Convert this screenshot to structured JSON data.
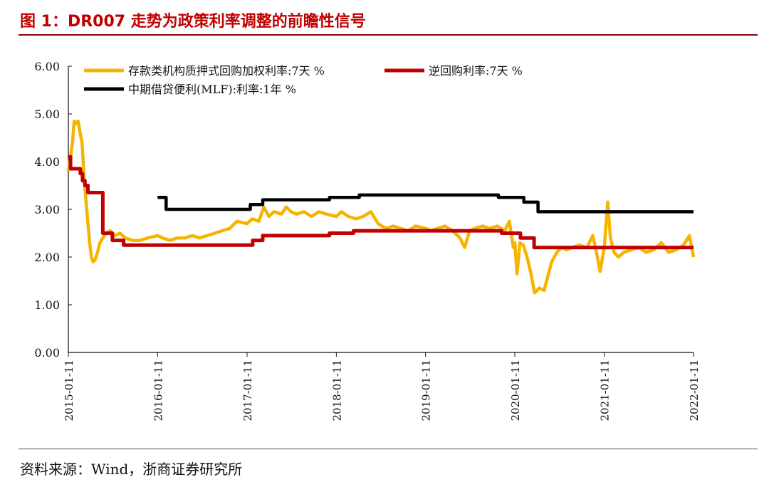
{
  "figure_title": "图 1：DR007 走势为政策利率调整的前瞻性信号",
  "source_note": "资料来源：Wind，浙商证券研究所",
  "chart_data": {
    "type": "line",
    "xlabel": "",
    "ylabel": "",
    "ylim": [
      0,
      6
    ],
    "x_range": [
      "2015-01-11",
      "2022-01-11"
    ],
    "y_ticks": [
      "0.00",
      "1.00",
      "2.00",
      "3.00",
      "4.00",
      "5.00",
      "6.00"
    ],
    "x_ticks": [
      "2015-01-11",
      "2016-01-11",
      "2017-01-11",
      "2018-01-11",
      "2019-01-11",
      "2020-01-11",
      "2021-01-11",
      "2022-01-11"
    ],
    "grid": false,
    "legend_position": "top",
    "series": [
      {
        "name": "存款类机构质押式回购加权利率:7天 %",
        "color": "#f5b400",
        "step": false,
        "points": [
          [
            "2015-01-11",
            3.8
          ],
          [
            "2015-01-20",
            4.1
          ],
          [
            "2015-01-28",
            4.4
          ],
          [
            "2015-02-04",
            4.85
          ],
          [
            "2015-02-12",
            4.8
          ],
          [
            "2015-02-20",
            4.85
          ],
          [
            "2015-02-28",
            4.6
          ],
          [
            "2015-03-08",
            4.4
          ],
          [
            "2015-03-16",
            3.7
          ],
          [
            "2015-03-24",
            3.2
          ],
          [
            "2015-04-01",
            2.7
          ],
          [
            "2015-04-08",
            2.3
          ],
          [
            "2015-04-15",
            2.0
          ],
          [
            "2015-04-22",
            1.9
          ],
          [
            "2015-05-01",
            1.95
          ],
          [
            "2015-05-10",
            2.1
          ],
          [
            "2015-05-20",
            2.3
          ],
          [
            "2015-06-01",
            2.4
          ],
          [
            "2015-06-15",
            2.5
          ],
          [
            "2015-07-01",
            2.55
          ],
          [
            "2015-07-20",
            2.45
          ],
          [
            "2015-08-10",
            2.5
          ],
          [
            "2015-09-01",
            2.4
          ],
          [
            "2015-10-01",
            2.35
          ],
          [
            "2015-11-01",
            2.35
          ],
          [
            "2015-12-01",
            2.4
          ],
          [
            "2016-01-11",
            2.45
          ],
          [
            "2016-02-01",
            2.4
          ],
          [
            "2016-03-01",
            2.35
          ],
          [
            "2016-04-01",
            2.4
          ],
          [
            "2016-05-01",
            2.4
          ],
          [
            "2016-06-01",
            2.45
          ],
          [
            "2016-07-01",
            2.4
          ],
          [
            "2016-08-01",
            2.45
          ],
          [
            "2016-09-01",
            2.5
          ],
          [
            "2016-10-01",
            2.55
          ],
          [
            "2016-11-01",
            2.6
          ],
          [
            "2016-12-01",
            2.75
          ],
          [
            "2017-01-11",
            2.7
          ],
          [
            "2017-02-01",
            2.8
          ],
          [
            "2017-03-01",
            2.75
          ],
          [
            "2017-03-20",
            3.05
          ],
          [
            "2017-04-10",
            2.85
          ],
          [
            "2017-05-01",
            2.95
          ],
          [
            "2017-06-01",
            2.9
          ],
          [
            "2017-06-20",
            3.05
          ],
          [
            "2017-07-10",
            2.95
          ],
          [
            "2017-08-01",
            2.9
          ],
          [
            "2017-09-01",
            2.95
          ],
          [
            "2017-10-01",
            2.85
          ],
          [
            "2017-11-01",
            2.95
          ],
          [
            "2017-12-01",
            2.9
          ],
          [
            "2018-01-11",
            2.85
          ],
          [
            "2018-02-01",
            2.95
          ],
          [
            "2018-03-01",
            2.85
          ],
          [
            "2018-04-01",
            2.8
          ],
          [
            "2018-05-01",
            2.85
          ],
          [
            "2018-06-01",
            2.95
          ],
          [
            "2018-07-01",
            2.7
          ],
          [
            "2018-08-01",
            2.6
          ],
          [
            "2018-09-01",
            2.65
          ],
          [
            "2018-10-01",
            2.6
          ],
          [
            "2018-11-01",
            2.55
          ],
          [
            "2018-12-01",
            2.65
          ],
          [
            "2019-01-11",
            2.6
          ],
          [
            "2019-02-01",
            2.55
          ],
          [
            "2019-03-01",
            2.6
          ],
          [
            "2019-04-01",
            2.65
          ],
          [
            "2019-05-01",
            2.55
          ],
          [
            "2019-06-01",
            2.4
          ],
          [
            "2019-06-20",
            2.2
          ],
          [
            "2019-07-10",
            2.55
          ],
          [
            "2019-08-01",
            2.6
          ],
          [
            "2019-09-01",
            2.65
          ],
          [
            "2019-10-01",
            2.6
          ],
          [
            "2019-11-01",
            2.65
          ],
          [
            "2019-12-01",
            2.55
          ],
          [
            "2019-12-20",
            2.75
          ],
          [
            "2020-01-05",
            2.2
          ],
          [
            "2020-01-11",
            2.3
          ],
          [
            "2020-01-20",
            1.65
          ],
          [
            "2020-02-01",
            2.3
          ],
          [
            "2020-02-15",
            2.25
          ],
          [
            "2020-03-01",
            2.0
          ],
          [
            "2020-03-15",
            1.7
          ],
          [
            "2020-04-01",
            1.25
          ],
          [
            "2020-04-20",
            1.35
          ],
          [
            "2020-05-10",
            1.3
          ],
          [
            "2020-05-25",
            1.6
          ],
          [
            "2020-06-10",
            1.9
          ],
          [
            "2020-07-01",
            2.1
          ],
          [
            "2020-07-20",
            2.2
          ],
          [
            "2020-08-10",
            2.15
          ],
          [
            "2020-09-01",
            2.2
          ],
          [
            "2020-10-01",
            2.25
          ],
          [
            "2020-11-01",
            2.2
          ],
          [
            "2020-11-25",
            2.45
          ],
          [
            "2020-12-10",
            2.1
          ],
          [
            "2020-12-25",
            1.7
          ],
          [
            "2021-01-11",
            2.2
          ],
          [
            "2021-01-25",
            3.15
          ],
          [
            "2021-02-05",
            2.4
          ],
          [
            "2021-02-20",
            2.1
          ],
          [
            "2021-03-10",
            2.0
          ],
          [
            "2021-04-01",
            2.1
          ],
          [
            "2021-05-01",
            2.15
          ],
          [
            "2021-06-01",
            2.2
          ],
          [
            "2021-07-01",
            2.1
          ],
          [
            "2021-08-01",
            2.15
          ],
          [
            "2021-09-01",
            2.3
          ],
          [
            "2021-10-01",
            2.1
          ],
          [
            "2021-11-01",
            2.15
          ],
          [
            "2021-12-01",
            2.25
          ],
          [
            "2021-12-25",
            2.45
          ],
          [
            "2022-01-11",
            2.0
          ]
        ]
      },
      {
        "name": "逆回购利率:7天 %",
        "color": "#c00000",
        "step": true,
        "points": [
          [
            "2015-01-11",
            4.1
          ],
          [
            "2015-01-20",
            3.85
          ],
          [
            "2015-03-01",
            3.75
          ],
          [
            "2015-03-10",
            3.6
          ],
          [
            "2015-03-20",
            3.5
          ],
          [
            "2015-04-01",
            3.35
          ],
          [
            "2015-06-01",
            2.5
          ],
          [
            "2015-07-10",
            2.35
          ],
          [
            "2015-08-25",
            2.25
          ],
          [
            "2016-01-11",
            2.25
          ],
          [
            "2017-01-11",
            2.25
          ],
          [
            "2017-02-03",
            2.35
          ],
          [
            "2017-03-16",
            2.45
          ],
          [
            "2017-12-14",
            2.5
          ],
          [
            "2018-03-22",
            2.55
          ],
          [
            "2019-11-18",
            2.5
          ],
          [
            "2020-02-03",
            2.4
          ],
          [
            "2020-03-30",
            2.2
          ],
          [
            "2022-01-11",
            2.2
          ]
        ]
      },
      {
        "name": "中期借贷便利(MLF):利率:1年 %",
        "color": "#000000",
        "step": true,
        "points": [
          [
            "2016-01-11",
            3.25
          ],
          [
            "2016-02-15",
            3.0
          ],
          [
            "2017-01-11",
            3.0
          ],
          [
            "2017-01-24",
            3.1
          ],
          [
            "2017-03-16",
            3.2
          ],
          [
            "2017-12-14",
            3.25
          ],
          [
            "2018-04-15",
            3.3
          ],
          [
            "2019-11-05",
            3.25
          ],
          [
            "2020-02-17",
            3.15
          ],
          [
            "2020-04-15",
            2.95
          ],
          [
            "2022-01-11",
            2.95
          ]
        ]
      }
    ]
  }
}
